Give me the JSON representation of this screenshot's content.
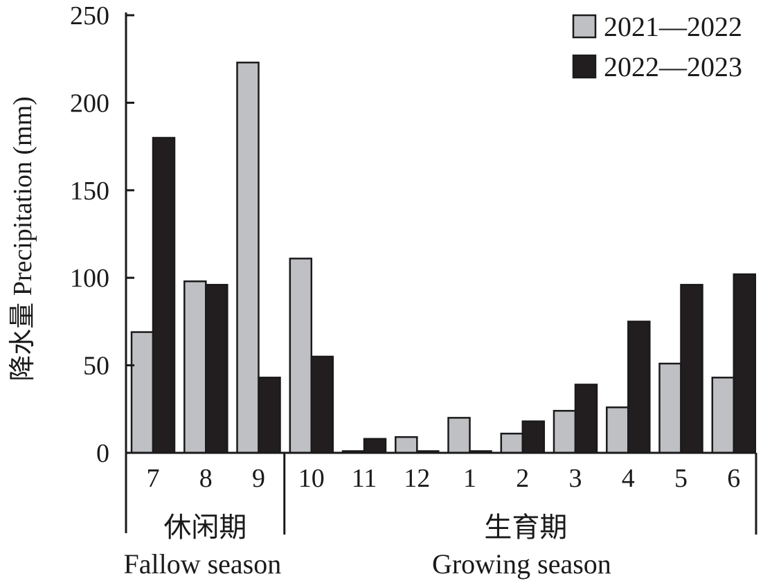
{
  "chart_data": {
    "type": "bar",
    "categories": [
      "7",
      "8",
      "9",
      "10",
      "11",
      "12",
      "1",
      "2",
      "3",
      "4",
      "5",
      "6"
    ],
    "series": [
      {
        "name": "2021—2022",
        "values": [
          69,
          98,
          223,
          111,
          1,
          9,
          20,
          11,
          24,
          26,
          51,
          43
        ],
        "color": "#bfc0c4"
      },
      {
        "name": "2022—2023",
        "values": [
          180,
          96,
          43,
          55,
          8,
          1,
          1,
          18,
          39,
          75,
          96,
          102
        ],
        "color": "#221e1f"
      }
    ],
    "ylabel": "降水量 Precipitation (mm)",
    "ylim": [
      0,
      250
    ],
    "yticks": [
      0,
      50,
      100,
      150,
      200,
      250
    ],
    "grid": false,
    "legend_position": "top-right",
    "groups": [
      {
        "label_cn": "休闲期",
        "label_en": "Fallow season",
        "categories": [
          "7",
          "8",
          "9"
        ]
      },
      {
        "label_cn": "生育期",
        "label_en": "Growing season",
        "categories": [
          "10",
          "11",
          "12",
          "1",
          "2",
          "3",
          "4",
          "5",
          "6"
        ]
      }
    ]
  }
}
